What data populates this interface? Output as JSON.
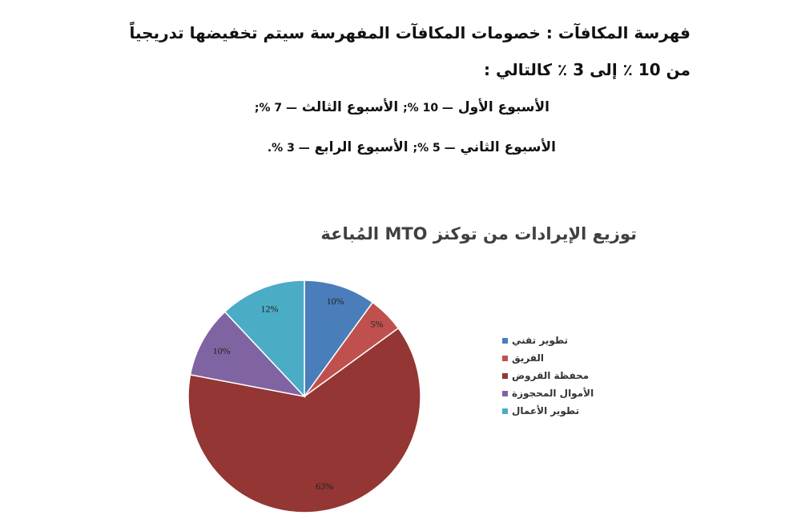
{
  "intro": {
    "line1": "فهرسة المكافآت : خصومات المكافآت المفهرسة سيتم تخفيضها تدريجياً",
    "line2": "من 10 ٪ إلى 3 ٪ كالتالي :"
  },
  "weeks": {
    "row1": {
      "w1_label": "الأسبوع الأول",
      "w1_value": "— 10 %;",
      "w3_label": "الأسبوع الثالث",
      "w3_value": "— 7 %;"
    },
    "row2": {
      "w2_label": "الأسبوع الثاني",
      "w2_value": "— 5 %;",
      "w4_label": "الأسبوع الرابع",
      "w4_value": "— 3 %."
    }
  },
  "chart_data": {
    "type": "pie",
    "title": "توزيع الإيرادات من توكنز MTO المُباعة",
    "slices": [
      {
        "label": "تطوير تقني",
        "value": 10,
        "display": "10%",
        "color": "#4a7ebb"
      },
      {
        "label": "الفريق",
        "value": 5,
        "display": "5%",
        "color": "#c0504d"
      },
      {
        "label": "محفظة القروض",
        "value": 63,
        "display": "63%",
        "color": "#943634"
      },
      {
        "label": "الأموال المحجوزة",
        "value": 10,
        "display": "10%",
        "color": "#8064a2"
      },
      {
        "label": "تطوير الأعمال",
        "value": 12,
        "display": "12%",
        "color": "#4bacc6"
      }
    ],
    "legend_position": "right"
  }
}
